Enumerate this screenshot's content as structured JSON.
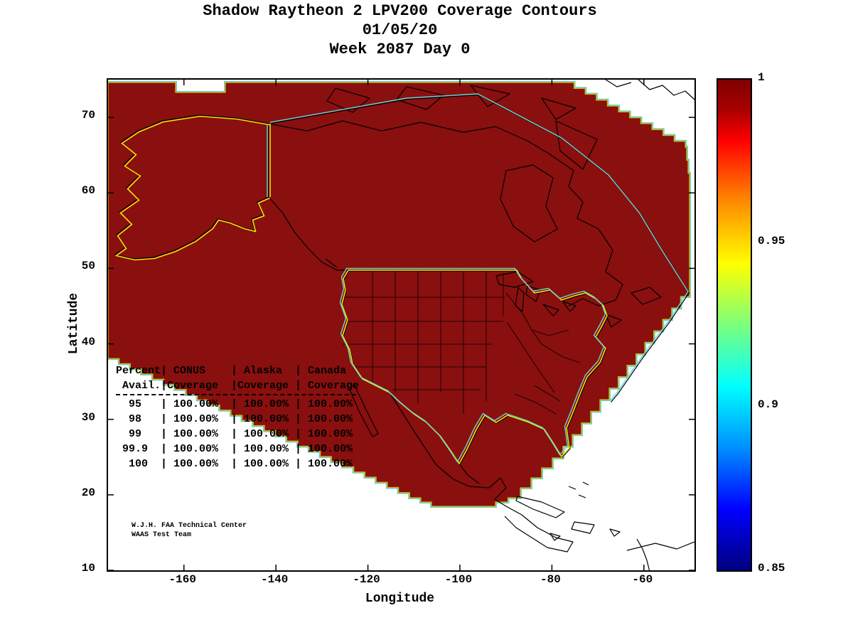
{
  "title": {
    "line1": "Shadow Raytheon 2 LPV200 Coverage Contours",
    "line2": "01/05/20",
    "line3": "Week 2087 Day 0"
  },
  "axes": {
    "x_label": "Longitude",
    "y_label": "Latitude"
  },
  "chart_data": {
    "type": "heatmap",
    "subtype": "geographic-coverage-contour-map",
    "title": "Shadow Raytheon 2 LPV200 Coverage Contours 01/05/20 Week 2087 Day 0",
    "xlabel": "Longitude",
    "ylabel": "Latitude",
    "x_axis": {
      "label": "Longitude",
      "ticks": [
        -160,
        -140,
        -120,
        -100,
        -80,
        -60
      ],
      "range": [
        -176.5,
        -49
      ]
    },
    "y_axis": {
      "label": "Latitude",
      "ticks": [
        10,
        20,
        30,
        40,
        50,
        60,
        70
      ],
      "range": [
        10,
        75
      ]
    },
    "colorbar": {
      "colormap": "jet",
      "min": 0.85,
      "max": 1,
      "ticks": [
        1,
        0.95,
        0.9,
        0.85
      ],
      "tick_labels": [
        "1",
        "0.95",
        "0.9",
        "0.85"
      ]
    },
    "coverage_region_value": 1,
    "coverage_fill_color": "#8a0f0f",
    "contour_colors": {
      "conus_alaska_outline": "#f2e300",
      "canada_outline": "#62d9d9",
      "coastline": "#000000"
    },
    "coverage_table": {
      "col_headers_line1": "Percent| CONUS    | Alaska  | Canada",
      "col_headers_line2": " Avail.|Coverage  |Coverage | Coverage",
      "rows": [
        {
          "percent": "95",
          "conus": "100.00%",
          "alaska": "100.00%",
          "canada": "100.00%"
        },
        {
          "percent": "98",
          "conus": "100.00%",
          "alaska": "100.00%",
          "canada": "100.00%"
        },
        {
          "percent": "99",
          "conus": "100.00%",
          "alaska": "100.00%",
          "canada": "100.00%"
        },
        {
          "percent": "99.9",
          "conus": "100.00%",
          "alaska": "100.00%",
          "canada": "100.00%"
        },
        {
          "percent": "100",
          "conus": "100.00%",
          "alaska": "100.00%",
          "canada": "100.00%"
        }
      ]
    },
    "annotation": {
      "line1": "W.J.H. FAA Technical Center",
      "line2": "WAAS Test Team"
    }
  }
}
